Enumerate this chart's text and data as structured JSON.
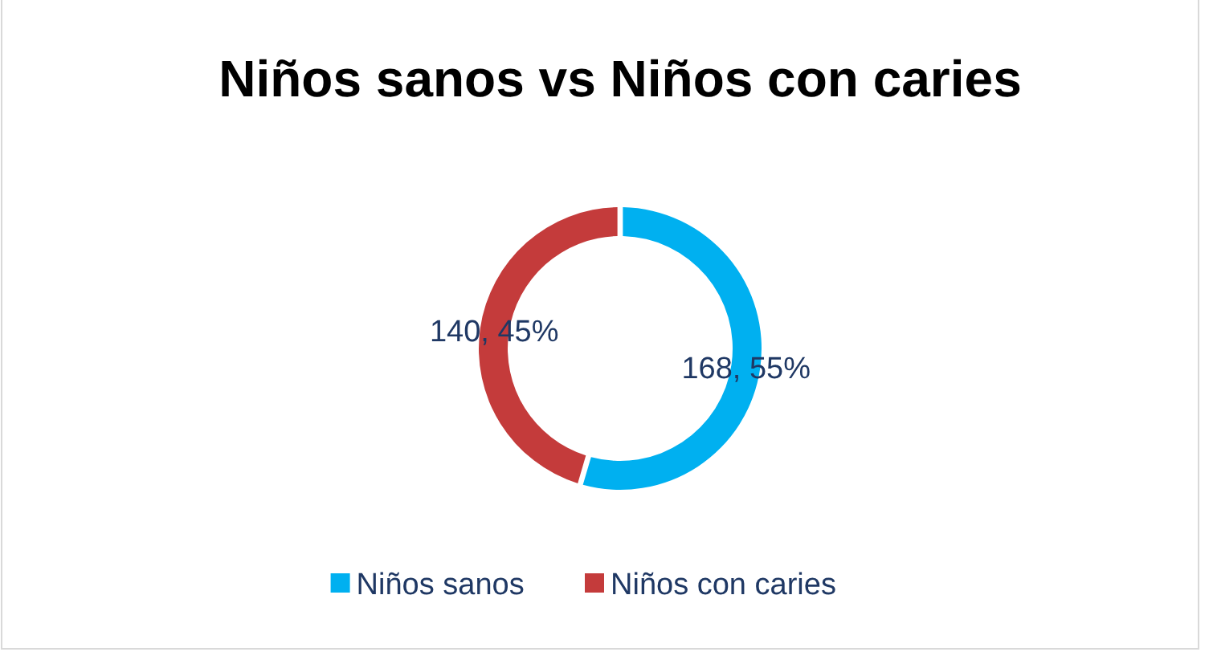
{
  "chart_data": {
    "type": "donut",
    "title": "Niños sanos vs Niños con caries",
    "categories": [
      "Niños sanos",
      "Niños con caries"
    ],
    "values": [
      168,
      140
    ],
    "colors": [
      "#00b0f0",
      "#c43b3b"
    ],
    "value_labels": [
      "168, 55%",
      "140, 45%"
    ],
    "legend": "bottom"
  }
}
